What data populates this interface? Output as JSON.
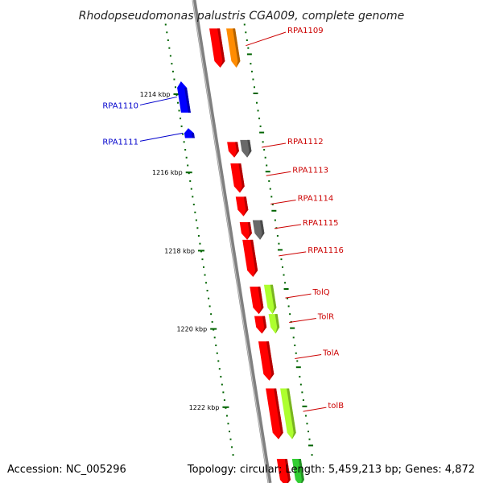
{
  "title": "Rhodopseudomonas palustris CGA009, complete genome",
  "accession": "Accession: NC_005296",
  "summary": "Topology: circular; Length: 5,459,213 bp; Genes: 4,872",
  "colors": {
    "cds_forward": "#ff0000",
    "cds_orange": "#ff8c00",
    "cds_reverse": "#0000ff",
    "cds_gray": "#696969",
    "cds_lime": "#adff2f",
    "cds_green": "#32cd32",
    "tick": "#006400",
    "backbone": "#808080",
    "label_forward": "#cc0000",
    "label_reverse": "#0000cc"
  },
  "scale": {
    "unit": "kbp",
    "labels": [
      {
        "kbp": 1214,
        "text": "1214 kbp"
      },
      {
        "kbp": 1216,
        "text": "1216 kbp"
      },
      {
        "kbp": 1218,
        "text": "1218 kbp"
      },
      {
        "kbp": 1220,
        "text": "1220 kbp"
      },
      {
        "kbp": 1222,
        "text": "1222 kbp"
      }
    ]
  },
  "features": [
    {
      "name": "RPA1109",
      "label": "RPA1109",
      "strand": "+",
      "color": "cds_forward",
      "start_kbp": 1212.3,
      "end_kbp": 1213.3
    },
    {
      "name": "orange-cds",
      "label": "",
      "strand": "+",
      "color": "cds_orange",
      "start_kbp": 1212.3,
      "end_kbp": 1213.3
    },
    {
      "name": "RPA1110",
      "label": "RPA1110",
      "strand": "-",
      "color": "cds_reverse",
      "start_kbp": 1213.65,
      "end_kbp": 1214.45
    },
    {
      "name": "RPA1111",
      "label": "RPA1111",
      "strand": "-",
      "color": "cds_reverse",
      "start_kbp": 1214.85,
      "end_kbp": 1215.1
    },
    {
      "name": "RPA1112",
      "label": "RPA1112",
      "strand": "+",
      "color": "cds_forward",
      "start_kbp": 1215.2,
      "end_kbp": 1215.6
    },
    {
      "name": "gray-cds-1",
      "label": "",
      "strand": "+",
      "color": "cds_gray",
      "start_kbp": 1215.15,
      "end_kbp": 1215.6
    },
    {
      "name": "RPA1113",
      "label": "RPA1113",
      "strand": "+",
      "color": "cds_forward",
      "start_kbp": 1215.75,
      "end_kbp": 1216.5
    },
    {
      "name": "RPA1114",
      "label": "RPA1114",
      "strand": "+",
      "color": "cds_forward",
      "start_kbp": 1216.6,
      "end_kbp": 1217.1
    },
    {
      "name": "RPA1115",
      "label": "RPA1115",
      "strand": "+",
      "color": "cds_forward",
      "start_kbp": 1217.25,
      "end_kbp": 1217.7
    },
    {
      "name": "gray-cds-2",
      "label": "",
      "strand": "+",
      "color": "cds_gray",
      "start_kbp": 1217.2,
      "end_kbp": 1217.7
    },
    {
      "name": "RPA1116",
      "label": "RPA1116",
      "strand": "+",
      "color": "cds_forward",
      "start_kbp": 1217.7,
      "end_kbp": 1218.65
    },
    {
      "name": "TolQ",
      "label": "TolQ",
      "strand": "+",
      "color": "cds_forward",
      "start_kbp": 1218.9,
      "end_kbp": 1219.6
    },
    {
      "name": "tolQ-lime",
      "label": "",
      "strand": "+",
      "color": "cds_lime",
      "start_kbp": 1218.85,
      "end_kbp": 1219.6
    },
    {
      "name": "TolR",
      "label": "TolR",
      "strand": "+",
      "color": "cds_forward",
      "start_kbp": 1219.65,
      "end_kbp": 1220.1
    },
    {
      "name": "tolR-lime",
      "label": "",
      "strand": "+",
      "color": "cds_lime",
      "start_kbp": 1219.6,
      "end_kbp": 1220.1
    },
    {
      "name": "TolA",
      "label": "TolA",
      "strand": "+",
      "color": "cds_forward",
      "start_kbp": 1220.3,
      "end_kbp": 1221.3
    },
    {
      "name": "tolB",
      "label": "tolB",
      "strand": "+",
      "color": "cds_forward",
      "start_kbp": 1221.5,
      "end_kbp": 1222.8
    },
    {
      "name": "tolB-lime",
      "label": "",
      "strand": "+",
      "color": "cds_lime",
      "start_kbp": 1221.5,
      "end_kbp": 1222.8
    },
    {
      "name": "next-red",
      "label": "",
      "strand": "+",
      "color": "cds_forward",
      "start_kbp": 1223.3,
      "end_kbp": 1224.0
    },
    {
      "name": "next-green",
      "label": "",
      "strand": "+",
      "color": "cds_green",
      "start_kbp": 1223.3,
      "end_kbp": 1224.0
    }
  ]
}
